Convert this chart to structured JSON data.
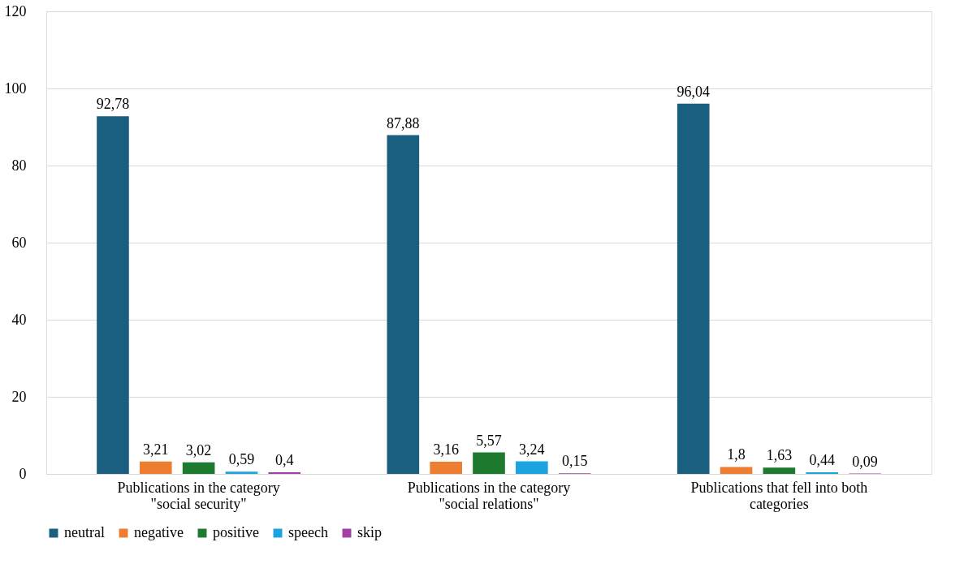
{
  "chart_data": {
    "type": "bar",
    "categories": [
      "Publications in the category \"social security\"",
      "Publications in the category \"social relations\"",
      "Publications that fell into both categories"
    ],
    "series": [
      {
        "name": "neutral",
        "color": "#1a5e80",
        "values": [
          92.78,
          87.88,
          96.04
        ],
        "value_labels": [
          "92,78",
          "87,88",
          "96,04"
        ]
      },
      {
        "name": "negative",
        "color": "#ed7d31",
        "values": [
          3.21,
          3.16,
          1.8
        ],
        "value_labels": [
          "3,21",
          "3,16",
          "1,8"
        ]
      },
      {
        "name": "positive",
        "color": "#1e7a2e",
        "values": [
          3.02,
          5.57,
          1.63
        ],
        "value_labels": [
          "3,02",
          "5,57",
          "1,63"
        ]
      },
      {
        "name": "speech",
        "color": "#1ba4e0",
        "values": [
          0.59,
          3.24,
          0.44
        ],
        "value_labels": [
          "0,59",
          "3,24",
          "0,44"
        ]
      },
      {
        "name": "skip",
        "color": "#a43fa5",
        "values": [
          0.4,
          0.15,
          0.09
        ],
        "value_labels": [
          "0,4",
          "0,15",
          "0,09"
        ]
      }
    ],
    "ylim": [
      0,
      120
    ],
    "yticks": [
      0,
      20,
      40,
      60,
      80,
      100,
      120
    ],
    "grid": "y",
    "legend": "bottom"
  }
}
